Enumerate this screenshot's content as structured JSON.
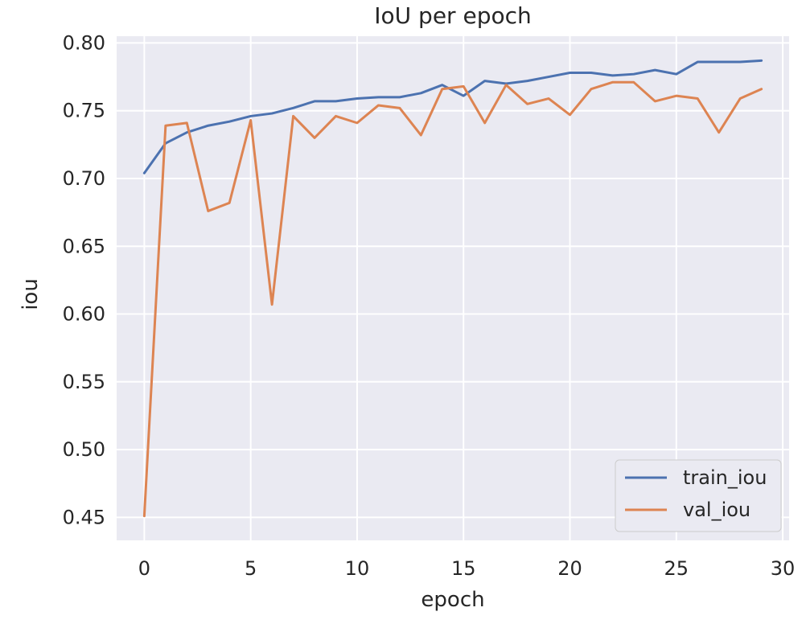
{
  "chart_data": {
    "type": "line",
    "title": "IoU per epoch",
    "xlabel": "epoch",
    "ylabel": "iou",
    "xlim": [
      -1.3,
      30.3
    ],
    "ylim": [
      0.433,
      0.805
    ],
    "xticks": [
      0,
      5,
      10,
      15,
      20,
      25,
      30
    ],
    "yticks": [
      0.45,
      0.5,
      0.55,
      0.6,
      0.65,
      0.7,
      0.75,
      0.8
    ],
    "grid": true,
    "legend_position": "lower-right",
    "x": [
      0,
      1,
      2,
      3,
      4,
      5,
      6,
      7,
      8,
      9,
      10,
      11,
      12,
      13,
      14,
      15,
      16,
      17,
      18,
      19,
      20,
      21,
      22,
      23,
      24,
      25,
      26,
      27,
      28,
      29
    ],
    "series": [
      {
        "name": "train_iou",
        "color": "#4c72b0",
        "values": [
          0.704,
          0.726,
          0.734,
          0.739,
          0.742,
          0.746,
          0.748,
          0.752,
          0.757,
          0.757,
          0.759,
          0.76,
          0.76,
          0.763,
          0.769,
          0.761,
          0.772,
          0.77,
          0.772,
          0.775,
          0.778,
          0.778,
          0.776,
          0.777,
          0.78,
          0.777,
          0.786,
          0.786,
          0.786,
          0.787
        ]
      },
      {
        "name": "val_iou",
        "color": "#dd8452",
        "values": [
          0.451,
          0.739,
          0.741,
          0.676,
          0.682,
          0.743,
          0.607,
          0.746,
          0.73,
          0.746,
          0.741,
          0.754,
          0.752,
          0.732,
          0.766,
          0.768,
          0.741,
          0.769,
          0.755,
          0.759,
          0.747,
          0.766,
          0.771,
          0.771,
          0.757,
          0.761,
          0.759,
          0.734,
          0.759,
          0.766
        ]
      }
    ]
  }
}
